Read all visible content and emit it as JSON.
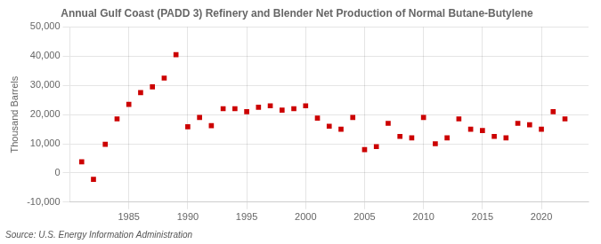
{
  "chart_data": {
    "type": "scatter",
    "title": "Annual Gulf Coast (PADD 3) Refinery and Blender Net Production of Normal Butane-Butylene",
    "ylabel": "Thousand Barrels",
    "source": "Source: U.S. Energy Information Administration",
    "x": [
      1981,
      1982,
      1983,
      1984,
      1985,
      1986,
      1987,
      1988,
      1989,
      1990,
      1991,
      1992,
      1993,
      1994,
      1995,
      1996,
      1997,
      1998,
      1999,
      2000,
      2001,
      2002,
      2003,
      2004,
      2005,
      2006,
      2007,
      2008,
      2009,
      2010,
      2011,
      2012,
      2013,
      2014,
      2015,
      2016,
      2017,
      2018,
      2019,
      2020,
      2021,
      2022
    ],
    "values": [
      3800,
      -2200,
      9800,
      18500,
      23500,
      27500,
      29500,
      32500,
      40500,
      15800,
      19000,
      16200,
      22000,
      22000,
      21000,
      22500,
      23000,
      21500,
      22000,
      23000,
      18800,
      16000,
      15000,
      19000,
      8000,
      9000,
      17000,
      12500,
      12000,
      19000,
      10000,
      12000,
      18500,
      15000,
      14500,
      12500,
      12000,
      17000,
      16500,
      15000,
      21000,
      18500
    ],
    "color": "#cc0000",
    "marker": "square",
    "xlim": [
      1980,
      2024
    ],
    "xticks": [
      1985,
      1990,
      1995,
      2000,
      2005,
      2010,
      2015,
      2020
    ],
    "ylim": [
      -10000,
      50000
    ],
    "yticks": [
      {
        "value": -10000,
        "label": "-10,000"
      },
      0,
      {
        "value": 10000,
        "label": "10,000"
      },
      {
        "value": 20000,
        "label": "20,000"
      },
      {
        "value": 30000,
        "label": "30,000"
      },
      {
        "value": 40000,
        "label": "40,000"
      },
      {
        "value": 50000,
        "label": "50,000"
      }
    ],
    "grid": true
  }
}
